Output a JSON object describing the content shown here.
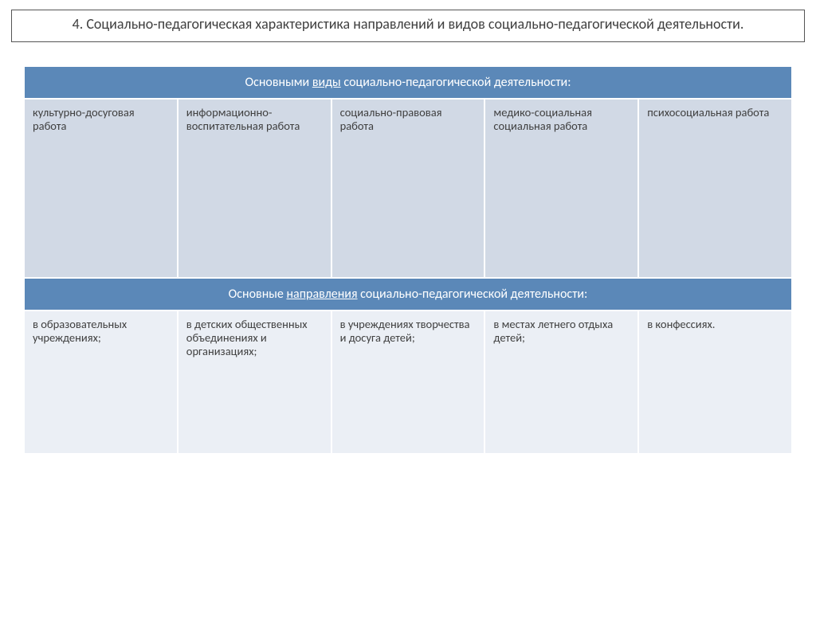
{
  "title": "4. Социально-педагогическая характеристика направлений и видов социально-педагогической деятельности.",
  "section1": {
    "header_pre": "Основными ",
    "header_underlined": "виды",
    "header_post": " социально-педагогической деятельности:",
    "cells": [
      " культурно-досуговая работа",
      "  информационно-воспитательная работа",
      "  социально-правовая работа",
      "медико-социальная социальная работа",
      "психосоциальная работа"
    ]
  },
  "section2": {
    "header_pre": "Основные ",
    "header_underlined": "направления",
    "header_post": "  социально-педагогической деятельности:",
    "cells": [
      "в образовательных учреждениях;",
      "в детских общественных объединениях и организациях;",
      "в учреждениях творчества и досуга детей;",
      "в местах летнего отдыха детей;",
      "в конфессиях."
    ]
  },
  "colors": {
    "header_bg": "#5b88b8",
    "row1_bg": "#d1d9e5",
    "row2_bg": "#ebeff5",
    "border": "#ffffff",
    "text": "#404040"
  },
  "layout": {
    "title_fontsize": 18,
    "header_fontsize": 16,
    "cell_fontsize": 14.5,
    "row1_height": 225,
    "row2_height": 180,
    "columns": 5
  }
}
